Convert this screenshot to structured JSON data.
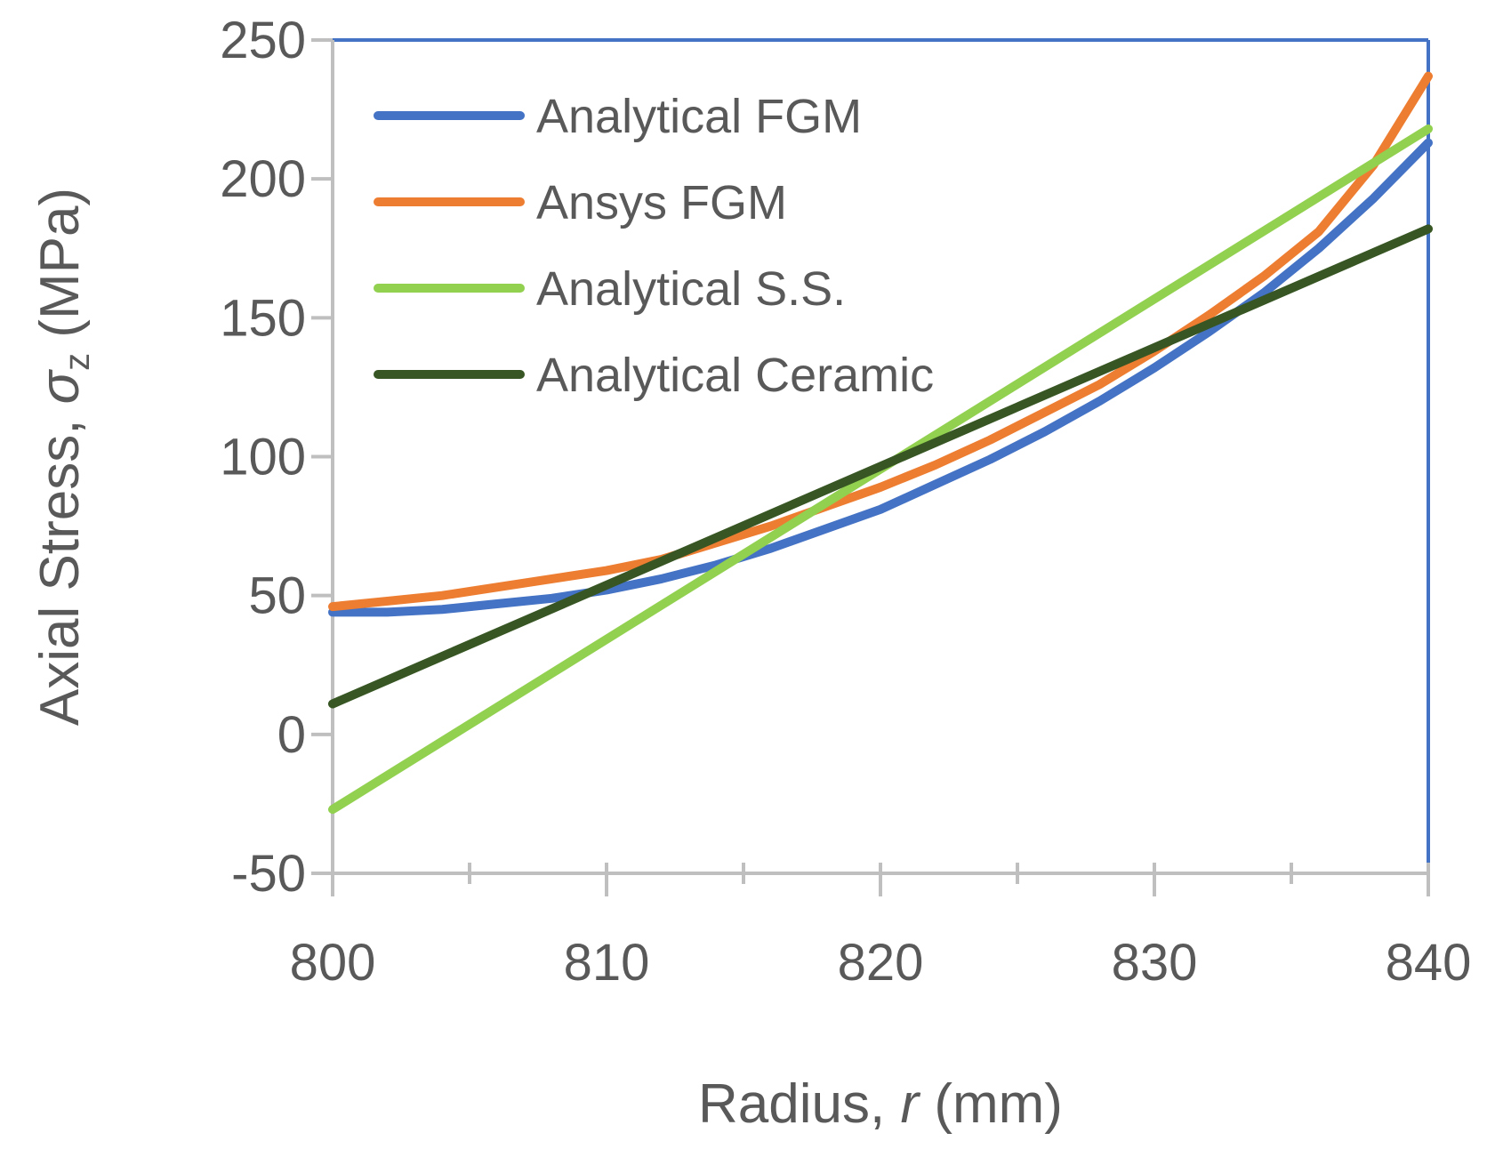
{
  "chart_data": {
    "type": "line",
    "xlabel": {
      "prefix": "Radius, ",
      "var": "r",
      "suffix": " (mm)"
    },
    "ylabel": {
      "prefix": "Axial Stress, ",
      "var": "σ",
      "sub": "z",
      "suffix": " (MPa)"
    },
    "xlim": [
      800,
      840
    ],
    "ylim": [
      -50,
      250
    ],
    "xticks": [
      800,
      810,
      820,
      830,
      840
    ],
    "xtick_labels": [
      "800",
      "810",
      "820",
      "830",
      "840"
    ],
    "yticks": [
      -50,
      0,
      50,
      100,
      150,
      200,
      250
    ],
    "ytick_labels": [
      "-50",
      "0",
      "50",
      "100",
      "150",
      "200",
      "250"
    ],
    "grid": false,
    "legend_position": "top-left",
    "series": [
      {
        "name": "Analytical FGM",
        "color": "#4472C4",
        "x": [
          800,
          802,
          804,
          806,
          808,
          810,
          812,
          814,
          816,
          818,
          820,
          822,
          824,
          826,
          828,
          830,
          832,
          834,
          836,
          838,
          840
        ],
        "y": [
          44,
          44,
          45,
          47,
          49,
          52,
          56,
          61,
          67,
          74,
          81,
          90,
          99,
          109,
          120,
          132,
          145,
          159,
          175,
          193,
          213
        ]
      },
      {
        "name": "Ansys FGM",
        "color": "#ED7D31",
        "x": [
          800,
          802,
          804,
          806,
          808,
          810,
          812,
          814,
          816,
          818,
          820,
          822,
          824,
          826,
          828,
          830,
          832,
          834,
          836,
          838,
          840
        ],
        "y": [
          46,
          48,
          50,
          53,
          56,
          59,
          63,
          69,
          75,
          82,
          89,
          97,
          106,
          116,
          126,
          138,
          151,
          165,
          181,
          205,
          237
        ]
      },
      {
        "name": "Analytical S.S.",
        "color": "#92D050",
        "x": [
          800,
          840
        ],
        "y": [
          -27,
          218
        ]
      },
      {
        "name": "Analytical Ceramic",
        "color": "#375623",
        "x": [
          800,
          840
        ],
        "y": [
          11,
          182
        ]
      }
    ],
    "frame_color": "#4472C4",
    "axis_color": "#BFBFBF"
  }
}
